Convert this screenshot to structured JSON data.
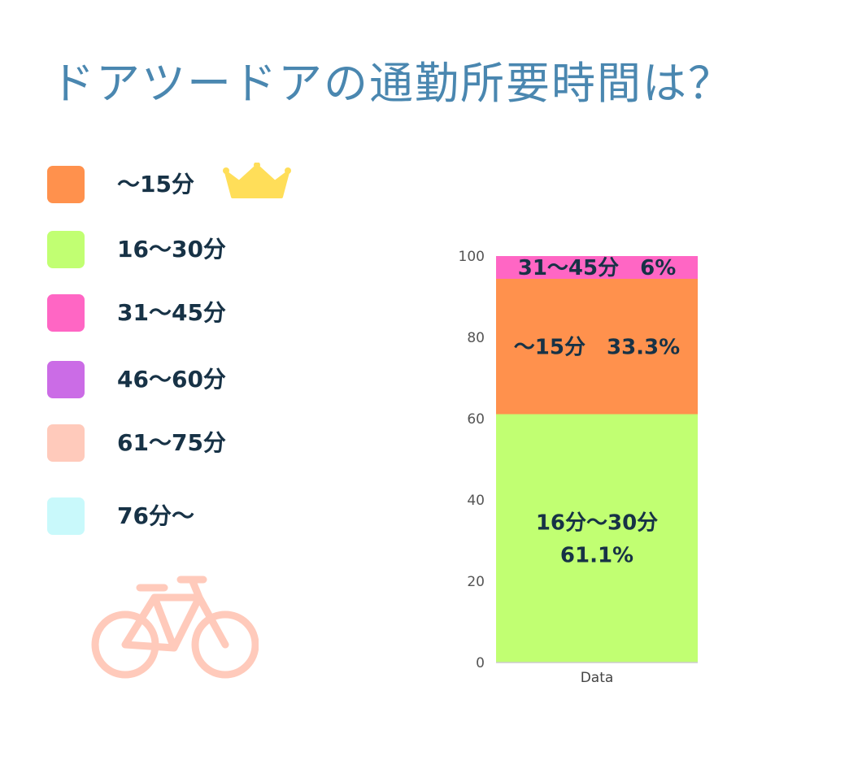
{
  "title": "ドアツードアの通勤所要時間は？",
  "legend": [
    {
      "label": "〜15分",
      "color": "#ff914d"
    },
    {
      "label": "16〜30分",
      "color": "#c1ff72"
    },
    {
      "label": "31〜45分",
      "color": "#ff66c4"
    },
    {
      "label": "46〜60分",
      "color": "#cb6ce6"
    },
    {
      "label": "61〜75分",
      "color": "#ffcabb"
    },
    {
      "label": "76分〜",
      "color": "#c9f9fb"
    }
  ],
  "icons": {
    "crown": "crown-icon",
    "bicycle": "bicycle-icon",
    "crown_color": "#ffde59",
    "bicycle_color": "#ffcabb"
  },
  "chart_data": {
    "type": "bar",
    "stacked": true,
    "categories": [
      "Data"
    ],
    "ylim": [
      0,
      100
    ],
    "yticks": [
      0,
      20,
      40,
      60,
      80,
      100
    ],
    "grid": false,
    "series": [
      {
        "name": "16〜30分",
        "values": [
          61.1
        ],
        "color": "#c1ff72",
        "label_lines": [
          "16分〜30分",
          "61.1%"
        ]
      },
      {
        "name": "〜15分",
        "values": [
          33.3
        ],
        "color": "#ff914d",
        "label_lines": [
          "〜15分　33.3%"
        ]
      },
      {
        "name": "31〜45分",
        "values": [
          6
        ],
        "color": "#ff66c4",
        "label_lines": [
          "31〜45分　6%"
        ]
      }
    ]
  }
}
